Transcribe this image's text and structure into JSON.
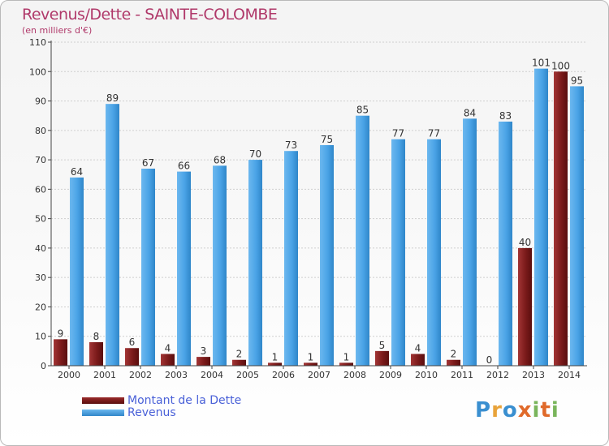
{
  "header": {
    "title": "Revenus/Dette - SAINTE-COLOMBE",
    "subtitle": "(en milliers d'€)"
  },
  "legend": {
    "items": [
      {
        "label": "Montant de la Dette",
        "color": "#7a1a1a"
      },
      {
        "label": "Revenus",
        "color": "#4aa3e6"
      }
    ]
  },
  "brand": {
    "text": "Proxiti",
    "letters": [
      {
        "ch": "P",
        "color": "#3a8fd0"
      },
      {
        "ch": "r",
        "color": "#e8a33a"
      },
      {
        "ch": "o",
        "color": "#3a8fd0"
      },
      {
        "ch": "x",
        "color": "#e06a2a"
      },
      {
        "ch": "i",
        "color": "#7ab55c"
      },
      {
        "ch": "t",
        "color": "#e06a2a"
      },
      {
        "ch": "i",
        "color": "#7ab55c"
      }
    ]
  },
  "chart_data": {
    "type": "bar",
    "title": "Revenus/Dette - SAINTE-COLOMBE",
    "subtitle": "(en milliers d'€)",
    "xlabel": "",
    "ylabel": "",
    "ylim": [
      0,
      110
    ],
    "yticks": [
      0,
      10,
      20,
      30,
      40,
      50,
      60,
      70,
      80,
      90,
      100,
      110
    ],
    "grid": true,
    "legend_position": "bottom-left",
    "categories": [
      "2000",
      "2001",
      "2002",
      "2003",
      "2004",
      "2005",
      "2006",
      "2007",
      "2008",
      "2009",
      "2010",
      "2011",
      "2012",
      "2013",
      "2014"
    ],
    "series": [
      {
        "name": "Montant de la Dette",
        "color": "#7a1a1a",
        "values": [
          9,
          8,
          6,
          4,
          3,
          2,
          1,
          1,
          1,
          5,
          4,
          2,
          0,
          40,
          100
        ]
      },
      {
        "name": "Revenus",
        "color": "#4aa3e6",
        "values": [
          64,
          89,
          67,
          66,
          68,
          70,
          73,
          75,
          85,
          77,
          77,
          84,
          83,
          101,
          95
        ]
      }
    ]
  }
}
